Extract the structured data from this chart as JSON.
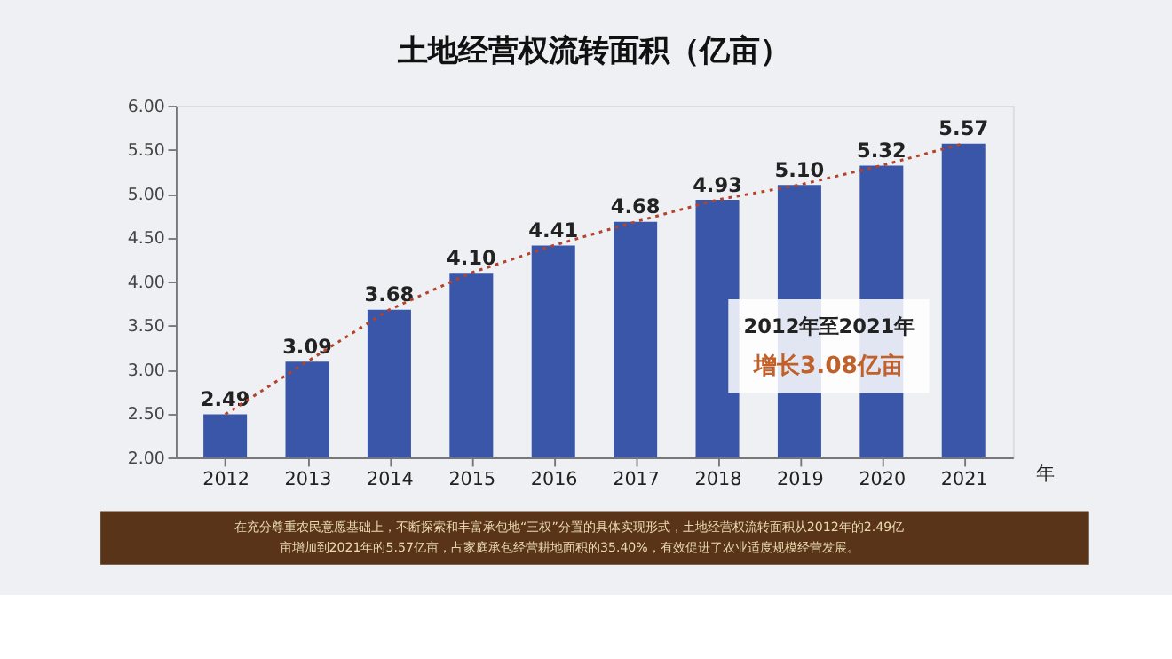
{
  "chart_data": {
    "type": "bar",
    "title": "土地经营权流转面积（亿亩）",
    "xlabel": "年",
    "categories": [
      "2012",
      "2013",
      "2014",
      "2015",
      "2016",
      "2017",
      "2018",
      "2019",
      "2020",
      "2021"
    ],
    "series": [
      {
        "color": "#3a56a8",
        "values": [
          2.49,
          3.09,
          3.68,
          4.1,
          4.41,
          4.68,
          4.93,
          5.1,
          5.32,
          5.57
        ],
        "value_labels": [
          "2.49",
          "3.09",
          "3.68",
          "4.10",
          "4.41",
          "4.68",
          "4.93",
          "5.10",
          "5.32",
          "5.57"
        ]
      },
      {
        "type": "line",
        "color": "#b5432a",
        "line_style": "dotted",
        "values": [
          2.49,
          3.09,
          3.68,
          4.1,
          4.41,
          4.68,
          4.93,
          5.1,
          5.32,
          5.57
        ]
      }
    ],
    "ylim": [
      2.0,
      6.0
    ],
    "yticks": [
      {
        "value": 2.0,
        "label": "2.00"
      },
      {
        "value": 2.5,
        "label": "2.50"
      },
      {
        "value": 3.0,
        "label": "3.00"
      },
      {
        "value": 3.5,
        "label": "3.50"
      },
      {
        "value": 4.0,
        "label": "4.00"
      },
      {
        "value": 4.5,
        "label": "4.50"
      },
      {
        "value": 5.0,
        "label": "5.00"
      },
      {
        "value": 5.5,
        "label": "5.50"
      },
      {
        "value": 6.0,
        "label": "6.00"
      }
    ],
    "annotations": [
      "2012年至2021年",
      "增长3.08亿亩",
      "在充分尊重农民意愿基础上，不断探索和丰富承包地“三权”分置的具体实现形式，土地经营权流转面积从2012年的2.49亿亩增加到2021年的5.57亿亩，占家庭承包经营耕地面积的35.40%，有效促进了农业适度规模经营发展。"
    ]
  }
}
